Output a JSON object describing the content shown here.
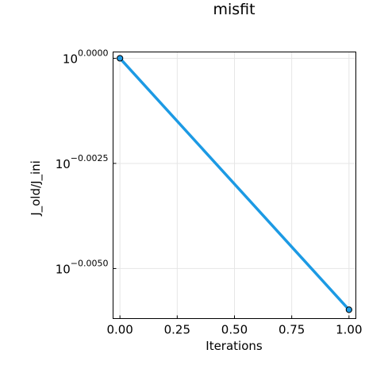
{
  "chart_data": {
    "type": "line",
    "title": "misfit",
    "xlabel": "Iterations",
    "ylabel": "J_old/J_ini",
    "yscale": "log10",
    "xlim": [
      -0.03,
      1.03
    ],
    "ylim_exponent": [
      -0.00619,
      0.00015
    ],
    "x_ticks": [
      0.0,
      0.25,
      0.5,
      0.75,
      1.0
    ],
    "x_tick_labels": [
      "0.00",
      "0.25",
      "0.50",
      "0.75",
      "1.00"
    ],
    "y_tick_exponents": [
      0.0,
      -0.0025,
      -0.005
    ],
    "y_tick_labels": [
      {
        "base": "10",
        "exp": "0.0000"
      },
      {
        "base": "10",
        "exp": "−0.0025"
      },
      {
        "base": "10",
        "exp": "−0.0050"
      }
    ],
    "grid": true,
    "legend": "none",
    "series": [
      {
        "x": [
          0.0,
          1.0
        ],
        "log10_y": [
          0.0,
          -0.00598
        ],
        "color": "#1c9ae4",
        "marker": "circle"
      }
    ]
  }
}
